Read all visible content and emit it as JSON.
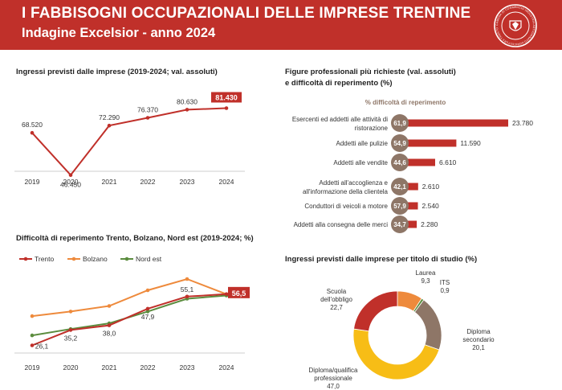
{
  "header": {
    "title": "I FABBISOGNI OCCUPAZIONALI DELLE IMPRESE TRENTINE",
    "subtitle": "Indagine Excelsior - anno 2024",
    "logo_text": "CAMERA DI COMMERCIO INDUSTRIA ARTIGIANATO AGRICOLTURA TRENTO"
  },
  "colors": {
    "banner": "#c0302a",
    "trento": "#c0302a",
    "bolzano": "#ee8a3c",
    "nordest": "#5b8c3e",
    "bar": "#c0302a",
    "circle": "#8e7667"
  },
  "chart_data": [
    {
      "type": "line",
      "title": "Ingressi previsti dalle imprese (2019-2024; val. assoluti)",
      "x": [
        "2019",
        "2020",
        "2021",
        "2022",
        "2023",
        "2024"
      ],
      "series": [
        {
          "values": [
            68520,
            46450,
            72290,
            76370,
            80630,
            81430
          ],
          "labels": [
            "68.520",
            "46.450",
            "72.290",
            "76.370",
            "80.630",
            "81.430"
          ]
        }
      ],
      "grid": false
    },
    {
      "type": "line",
      "title": "Difficoltà di reperimento Trento, Bolzano, Nord est (2019-2024; %)",
      "x": [
        "2019",
        "2020",
        "2021",
        "2022",
        "2023",
        "2024"
      ],
      "legend_position": "top-left",
      "series": [
        {
          "name": "Trento",
          "values": [
            26.1,
            35.2,
            38.0,
            47.9,
            55.1,
            56.5
          ],
          "labels": [
            "26,1",
            "35,2",
            "38,0",
            "47,9",
            "55,1",
            "56,5"
          ]
        },
        {
          "name": "Bolzano",
          "values": [
            43.5,
            46.2,
            49.5,
            58.8,
            65.5,
            56.5
          ]
        },
        {
          "name": "Nord est",
          "values": [
            32.0,
            35.8,
            39.2,
            46.2,
            53.8,
            55.7
          ]
        }
      ],
      "grid": false
    },
    {
      "type": "bar",
      "orientation": "horizontal",
      "title_line1": "Figure professionali più richieste (val. assoluti)",
      "title_line2": "e difficoltà di reperimento (%)",
      "subheader": "% difficoltà di reperimento",
      "categories": [
        [
          "Esercenti ed addetti alle attività di",
          "ristorazione"
        ],
        [
          "Addetti alle pulizie"
        ],
        [
          "Addetti alle vendite"
        ],
        [
          "Addetti all'accoglienza e",
          "all'informazione della clientela"
        ],
        [
          "Conduttori di veicoli a motore"
        ],
        [
          "Addetti alla consegna delle merci"
        ]
      ],
      "values": [
        23780,
        11590,
        6610,
        2610,
        2540,
        2280
      ],
      "value_labels": [
        "23.780",
        "11.590",
        "6.610",
        "2.610",
        "2.540",
        "2.280"
      ],
      "difficulty": [
        "61,9",
        "54,9",
        "44,6",
        "42,1",
        "57,9",
        "34,7"
      ]
    },
    {
      "type": "pie",
      "donut": true,
      "title": "Ingressi previsti dalle imprese per titolo di studio (%)",
      "slices": [
        {
          "label": "Laurea",
          "value": 9.3,
          "value_label": "9,3",
          "color": "#ee8a3c"
        },
        {
          "label": "ITS",
          "value": 0.9,
          "value_label": "0,9",
          "color": "#5b8c3e"
        },
        {
          "label": "Diploma secondario",
          "value": 20.1,
          "value_label": "20,1",
          "color": "#8e7667"
        },
        {
          "label": "Diploma/qualifica professionale",
          "value": 47.0,
          "value_label": "47,0",
          "color": "#f7bd16"
        },
        {
          "label": "Scuola dell'obbligo",
          "value": 22.7,
          "value_label": "22,7",
          "color": "#c0302a"
        }
      ]
    }
  ]
}
